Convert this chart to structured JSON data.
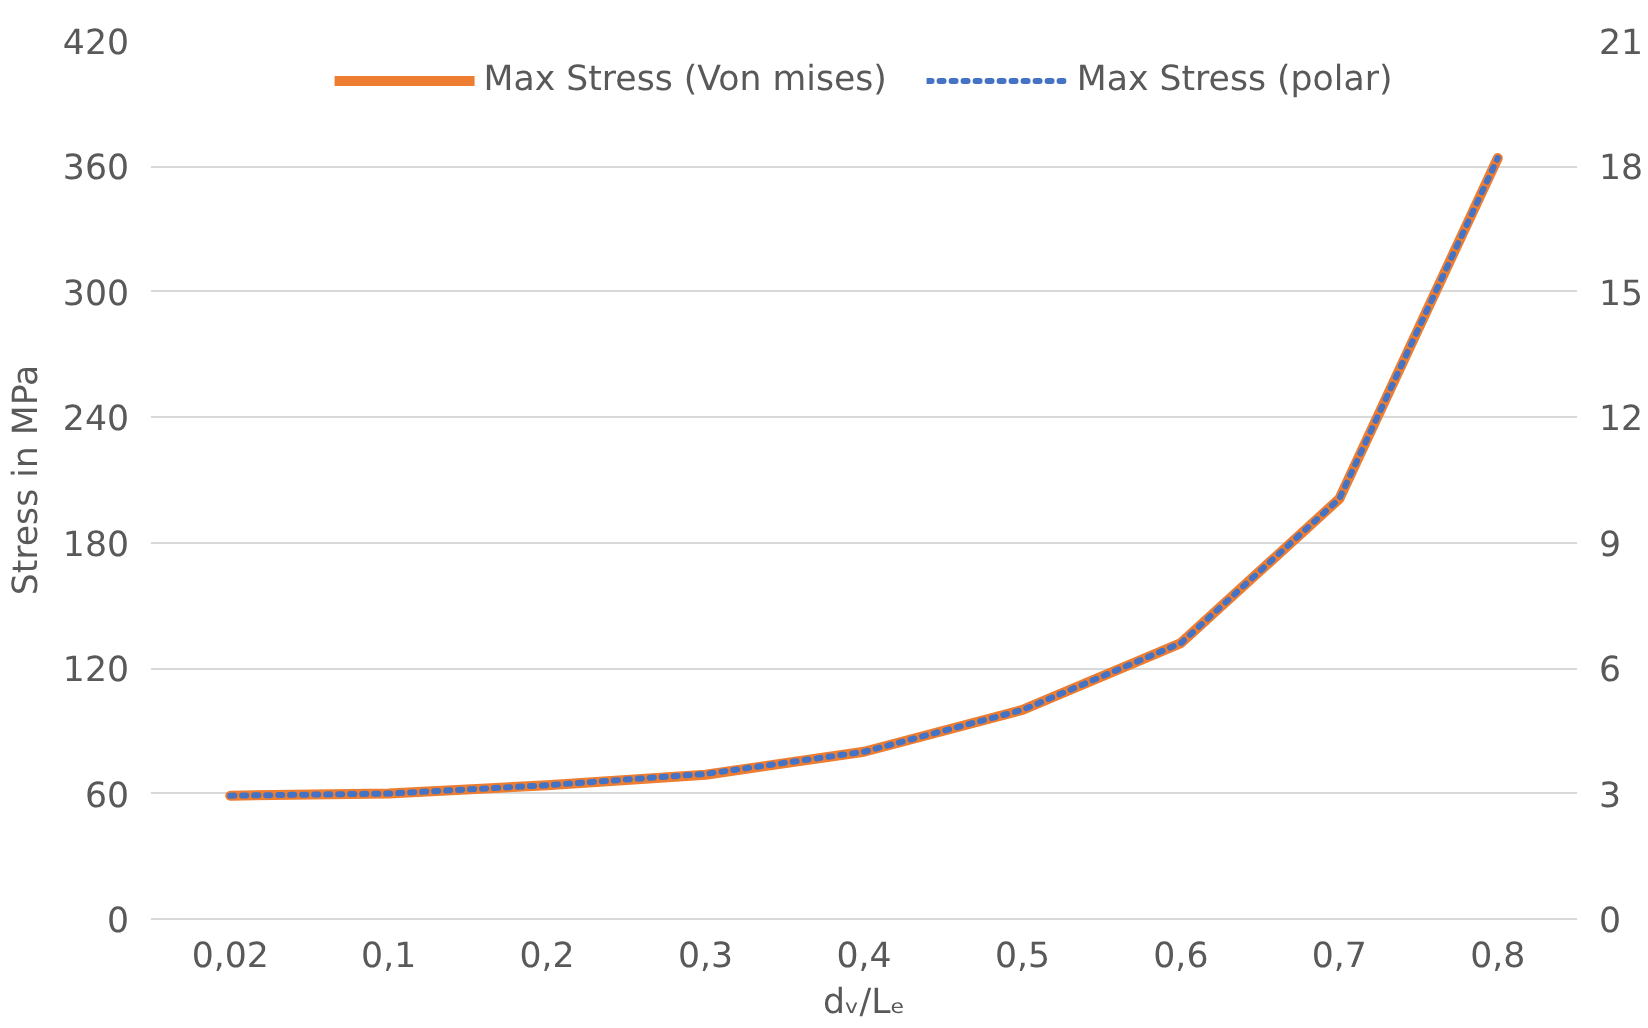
{
  "chart_data": {
    "type": "line",
    "xlabel": "dᵥ/Lₑ",
    "ylabel": "Stress in MPa",
    "categories": [
      "0,02",
      "0,1",
      "0,2",
      "0,3",
      "0,4",
      "0,5",
      "0,6",
      "0,7",
      "0,8"
    ],
    "series": [
      {
        "name": "Max Stress (Von mises)",
        "color": "#ed7d31",
        "line_style": "solid",
        "values": [
          59,
          60,
          64,
          69,
          80,
          100,
          132,
          201,
          364
        ]
      },
      {
        "name": "Max Stress (polar)",
        "color": "#4472c4",
        "line_style": "dotted",
        "axis": "y2",
        "values": [
          2.95,
          3,
          3.2,
          3.47,
          4,
          5,
          6.6,
          10.05,
          18.2
        ]
      }
    ],
    "ylim": [
      0,
      420
    ],
    "yticks": [
      0,
      60,
      120,
      180,
      240,
      300,
      360,
      420
    ],
    "y2lim": [
      0,
      21
    ],
    "y2ticks": [
      0,
      3,
      6,
      9,
      12,
      15,
      18,
      21
    ],
    "grid": "y",
    "legend": "top",
    "marker": "none"
  }
}
